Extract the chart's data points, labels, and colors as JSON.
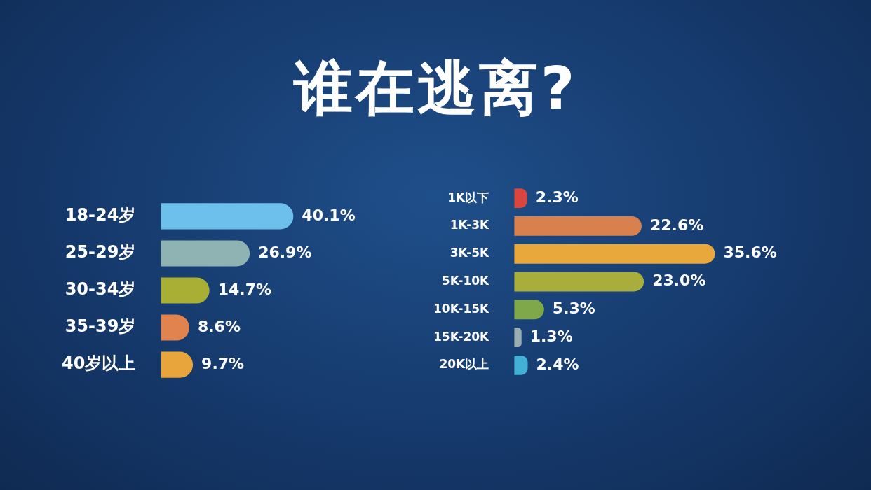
{
  "chart_data": [
    {
      "type": "bar",
      "orientation": "horizontal",
      "title": "谁在逃离?",
      "categories": [
        "18-24岁",
        "25-29岁",
        "30-34岁",
        "35-39岁",
        "40岁以上"
      ],
      "values": [
        40.1,
        26.9,
        14.7,
        8.6,
        9.7
      ],
      "colors": [
        "#6ec0ec",
        "#8fb3b3",
        "#a9ae35",
        "#e0834f",
        "#e8a53c"
      ],
      "value_labels": [
        "40.1%",
        "26.9%",
        "14.7%",
        "8.6%",
        "9.7%"
      ],
      "tick_labels": "y",
      "legend": false
    },
    {
      "type": "bar",
      "orientation": "horizontal",
      "categories": [
        "1K以下",
        "1K-3K",
        "3K-5K",
        "5K-10K",
        "10K-15K",
        "15K-20K",
        "20K以上"
      ],
      "values": [
        2.3,
        22.6,
        35.6,
        23.0,
        5.3,
        1.3,
        2.4
      ],
      "colors": [
        "#d9463e",
        "#d9804f",
        "#e8a83c",
        "#a9ad3c",
        "#7fa84a",
        "#9aaeb0",
        "#45b0d6"
      ],
      "value_labels": [
        "2.3%",
        "22.6%",
        "35.6%",
        "23.0%",
        "5.3%",
        "1.3%",
        "2.4%"
      ],
      "tick_labels": "y",
      "legend": false
    }
  ]
}
